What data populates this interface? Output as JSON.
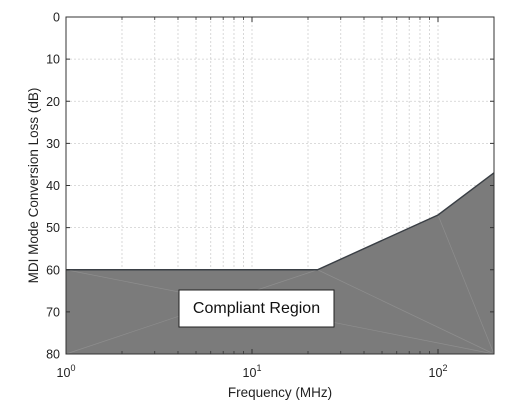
{
  "chart_data": {
    "type": "area",
    "xlabel": "Frequency (MHz)",
    "ylabel": "MDI Mode Conversion Loss (dB)",
    "x_scale": "log",
    "xlim": [
      1,
      200
    ],
    "ylim": [
      0,
      80
    ],
    "y_inverted": true,
    "grid": true,
    "x_ticks": [
      {
        "value": 1,
        "base": "10",
        "exp": "0"
      },
      {
        "value": 10,
        "base": "10",
        "exp": "1"
      },
      {
        "value": 100,
        "base": "10",
        "exp": "2"
      }
    ],
    "y_ticks": [
      0,
      10,
      20,
      30,
      40,
      50,
      60,
      70,
      80
    ],
    "limit_line": {
      "x": [
        1,
        22.5,
        100,
        200
      ],
      "y": [
        60,
        60,
        47,
        37
      ]
    },
    "region_label": "Compliant Region",
    "colors": {
      "fill": "#7b7b7b",
      "line": "#3a3f45",
      "grid": "#cfcfcf",
      "frame": "#333333"
    }
  }
}
